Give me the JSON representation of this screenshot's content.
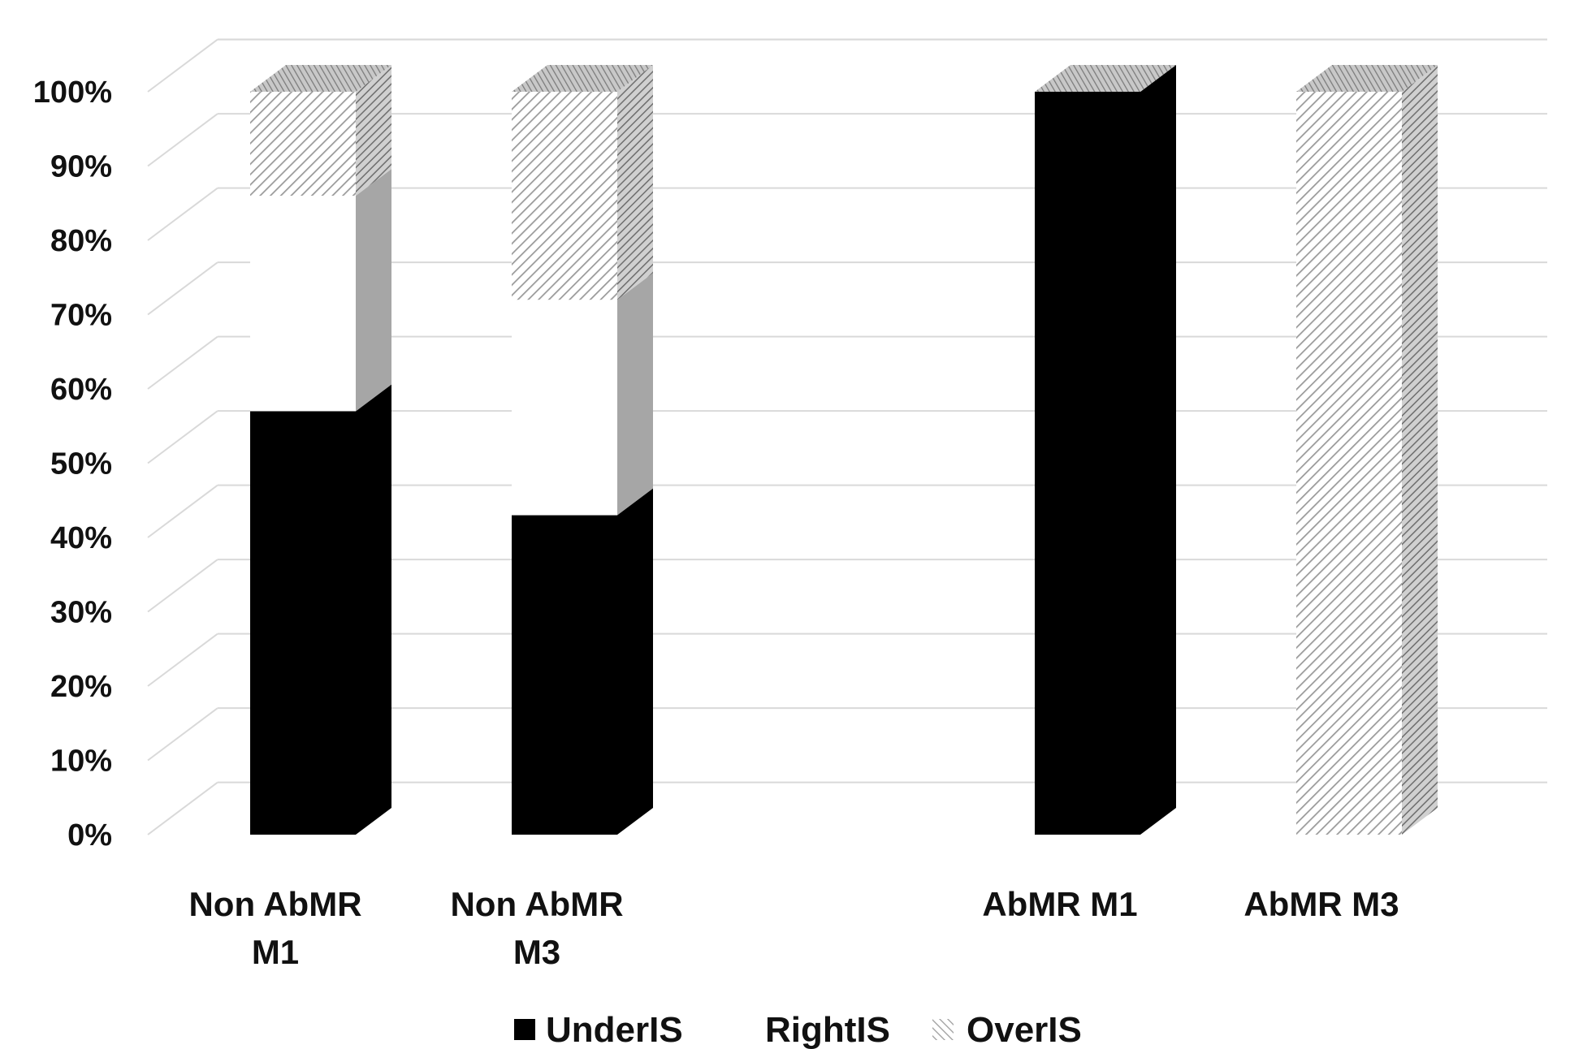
{
  "chart_data": {
    "type": "bar",
    "stacked": true,
    "percent_stacked": true,
    "three_d": true,
    "categories": [
      [
        "Non AbMR",
        "M1"
      ],
      [
        "Non AbMR",
        "M3"
      ],
      [],
      [
        "AbMR M1"
      ],
      [
        "AbMR M3"
      ]
    ],
    "series": [
      {
        "name": "UnderIS",
        "values": [
          57,
          43,
          0,
          100,
          0
        ],
        "fill": "#000000",
        "pattern": "solid"
      },
      {
        "name": "RightIS",
        "values": [
          29,
          29,
          0,
          0,
          0
        ],
        "fill": "#ffffff",
        "pattern": "none"
      },
      {
        "name": "OverIS",
        "values": [
          14,
          28,
          0,
          0,
          100
        ],
        "fill": "#bdbdbd",
        "pattern": "diagonal-hatch"
      }
    ],
    "y_ticks": [
      "0%",
      "10%",
      "20%",
      "30%",
      "40%",
      "50%",
      "60%",
      "70%",
      "80%",
      "90%",
      "100%"
    ],
    "ylim": [
      0,
      100
    ],
    "grid": true,
    "legend_position": "bottom",
    "title": "",
    "xlabel": "",
    "ylabel": "",
    "colors": {
      "gridline": "#d9d9d9",
      "side_face": "#a6a6a6",
      "top_face": "#a6a6a6",
      "hatch_stroke": "#9a9a9a",
      "text": "#111111"
    }
  }
}
